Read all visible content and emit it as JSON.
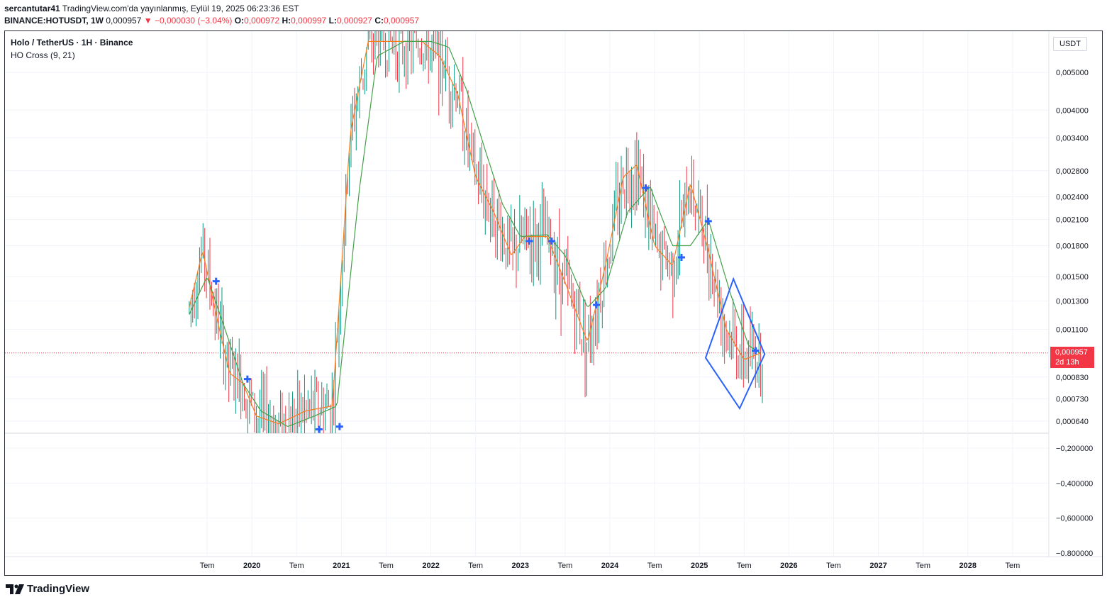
{
  "header": {
    "author": "sercantutar41",
    "published": "TradingView.com'da yayınlanmış, Eylül 19, 2025 06:23:36 EST",
    "symbol": "BINANCE:HOTUSDT, 1W",
    "last": "0,000957",
    "change_arrow": "▼",
    "change": "−0,000030 (−3.04%)",
    "o_label": "O:",
    "o": "0,000972",
    "h_label": "H:",
    "h": "0,000997",
    "l_label": "L:",
    "l": "0,000927",
    "c_label": "C:",
    "c": "0,000957"
  },
  "legend": {
    "title": "Holo / TetherUS · 1H · Binance",
    "indicator": "HO Cross (9, 21)"
  },
  "currency": "USDT",
  "price_tag": {
    "value": "0,000957",
    "countdown": "2d 13h"
  },
  "brand": "TradingView",
  "colors": {
    "up": "#089981",
    "down": "#f23645",
    "fast_ma": "#f57c1f",
    "slow_ma": "#43a047",
    "cross": "#2962ff",
    "drawing": "#2962ff"
  },
  "chart_data": {
    "type": "line",
    "description_units": "price in USDT, weekly bars",
    "y_ticks_upper": [
      "0,005000",
      "0,004000",
      "0,003400",
      "0,002800",
      "0,002400",
      "0,002100",
      "0,001800",
      "0,001500",
      "0,001300",
      "0,001100",
      "0,000830",
      "0,000730",
      "0,000640"
    ],
    "y_ticks_lower": [
      "−0,200000",
      "−0,400000",
      "−0,600000",
      "−0.800000"
    ],
    "x_ticks": [
      "Tem",
      "2020",
      "Tem",
      "2021",
      "Tem",
      "2022",
      "Tem",
      "2023",
      "Tem",
      "2024",
      "Tem",
      "2025",
      "Tem",
      "2026",
      "Tem",
      "2027",
      "Tem",
      "2028",
      "Tem"
    ],
    "x_bold_ticks": [
      "2020",
      "2021",
      "2022",
      "2023",
      "2024",
      "2025",
      "2026",
      "2027",
      "2028"
    ],
    "series": [
      {
        "name": "",
        "points": [
          [
            2019.3,
            0.00125
          ],
          [
            2019.45,
            0.00175
          ],
          [
            2019.6,
            0.0012
          ],
          [
            2019.75,
            0.00085
          ],
          [
            2019.9,
            0.0008
          ],
          [
            2020.05,
            0.00066
          ],
          [
            2020.3,
            0.00063
          ],
          [
            2020.6,
            0.00068
          ],
          [
            2020.9,
            0.0007
          ],
          [
            2021.1,
            0.0035
          ],
          [
            2021.3,
            0.006
          ],
          [
            2021.6,
            0.006
          ],
          [
            2021.9,
            0.006
          ],
          [
            2022.1,
            0.0055
          ],
          [
            2022.3,
            0.0044
          ],
          [
            2022.5,
            0.0027
          ],
          [
            2022.7,
            0.0022
          ],
          [
            2022.9,
            0.0017
          ],
          [
            2023.05,
            0.0019
          ],
          [
            2023.3,
            0.0019
          ],
          [
            2023.5,
            0.00145
          ],
          [
            2023.75,
            0.00102
          ],
          [
            2023.95,
            0.0016
          ],
          [
            2024.15,
            0.0027
          ],
          [
            2024.3,
            0.0029
          ],
          [
            2024.5,
            0.0018
          ],
          [
            2024.7,
            0.0016
          ],
          [
            2024.9,
            0.0026
          ],
          [
            2025.1,
            0.00175
          ],
          [
            2025.3,
            0.0011
          ],
          [
            2025.5,
            0.00092
          ],
          [
            2025.7,
            0.00096
          ]
        ]
      },
      {
        "name": "",
        "points": [
          [
            2019.3,
            0.0012
          ],
          [
            2019.5,
            0.0015
          ],
          [
            2019.7,
            0.0011
          ],
          [
            2019.9,
            0.0008
          ],
          [
            2020.1,
            0.00068
          ],
          [
            2020.4,
            0.00062
          ],
          [
            2020.7,
            0.00066
          ],
          [
            2020.95,
            0.0007
          ],
          [
            2021.2,
            0.0025
          ],
          [
            2021.4,
            0.0055
          ],
          [
            2021.7,
            0.006
          ],
          [
            2022.0,
            0.006
          ],
          [
            2022.2,
            0.0058
          ],
          [
            2022.4,
            0.0045
          ],
          [
            2022.6,
            0.0032
          ],
          [
            2022.8,
            0.0023
          ],
          [
            2023.0,
            0.0019
          ],
          [
            2023.3,
            0.00192
          ],
          [
            2023.5,
            0.0017
          ],
          [
            2023.75,
            0.00125
          ],
          [
            2023.95,
            0.0014
          ],
          [
            2024.2,
            0.0022
          ],
          [
            2024.45,
            0.00255
          ],
          [
            2024.7,
            0.0018
          ],
          [
            2024.9,
            0.0018
          ],
          [
            2025.1,
            0.0021
          ],
          [
            2025.35,
            0.00135
          ],
          [
            2025.55,
            0.001
          ],
          [
            2025.7,
            0.00095
          ]
        ]
      }
    ],
    "cross_markers": [
      [
        2019.6,
        0.00146
      ],
      [
        2019.95,
        0.00082
      ],
      [
        2020.75,
        0.00061
      ],
      [
        2020.98,
        0.00062
      ],
      [
        2023.1,
        0.00185
      ],
      [
        2023.35,
        0.00185
      ],
      [
        2023.85,
        0.00127
      ],
      [
        2024.4,
        0.00253
      ],
      [
        2024.8,
        0.00168
      ],
      [
        2025.1,
        0.00208
      ],
      [
        2025.63,
        0.00097
      ]
    ],
    "drawing": {
      "type": "rhombus",
      "points": [
        [
          2025.07,
          0.00093
        ],
        [
          2025.38,
          0.00148
        ],
        [
          2025.73,
          0.00095
        ],
        [
          2025.45,
          0.00069
        ]
      ]
    },
    "current_price": 0.000957
  }
}
